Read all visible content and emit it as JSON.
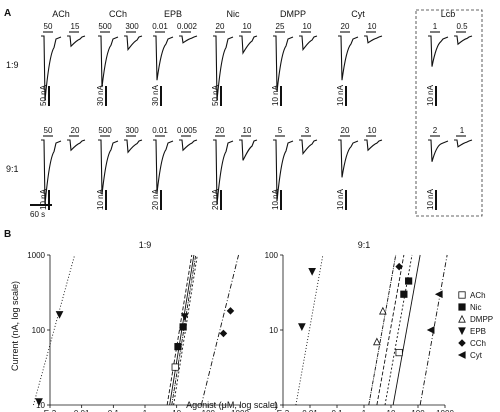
{
  "panelA": {
    "label": "A",
    "drugs": [
      "ACh",
      "CCh",
      "EPB",
      "Nic",
      "DMPP",
      "Cyt",
      "Lcb"
    ],
    "rows": [
      {
        "name": "1:9",
        "scales": [
          "50 nA",
          "30 nA",
          "30 nA",
          "50 nA",
          "10 nA",
          "10 nA",
          "10 nA"
        ],
        "concs": [
          [
            "50",
            "15"
          ],
          [
            "500",
            "300"
          ],
          [
            "0.01",
            "0.002"
          ],
          [
            "20",
            "10"
          ],
          [
            "25",
            "10"
          ],
          [
            "20",
            "10"
          ],
          [
            "1",
            "0.5"
          ]
        ],
        "depth": [
          0.95,
          0.75,
          0.65,
          0.95,
          0.82,
          0.65,
          0.45
        ],
        "depth2": [
          0.15,
          0.2,
          0.1,
          0.25,
          0.2,
          0.1,
          0.12
        ]
      },
      {
        "name": "9:1",
        "scales": [
          "10 nA",
          "10 nA",
          "20 nA",
          "20 nA",
          "10 nA",
          "10 nA",
          "10 nA"
        ],
        "concs": [
          [
            "50",
            "20"
          ],
          [
            "500",
            "300"
          ],
          [
            "0.01",
            "0.005"
          ],
          [
            "20",
            "10"
          ],
          [
            "5",
            "3"
          ],
          [
            "20",
            "10"
          ],
          [
            "2",
            "1"
          ]
        ],
        "depth": [
          0.95,
          0.8,
          0.78,
          0.95,
          0.9,
          0.55,
          0.32
        ],
        "depth2": [
          0.15,
          0.18,
          0.15,
          0.3,
          0.2,
          0.15,
          0.1
        ]
      }
    ],
    "time_scale": "60 s"
  },
  "panelB": {
    "label": "B",
    "legend": [
      {
        "name": "ACh",
        "marker": "square"
      },
      {
        "name": "Nic",
        "marker": "filled-square"
      },
      {
        "name": "DMPP",
        "marker": "open-triangle"
      },
      {
        "name": "EPB",
        "marker": "down-triangle"
      },
      {
        "name": "CCh",
        "marker": "diamond"
      },
      {
        "name": "Cyt",
        "marker": "left-triangle"
      }
    ],
    "xlabel": "Agonist (μM, log scale)",
    "ylabel": "Current (nA, log scale)",
    "x_ticks": [
      "E-3",
      "0.01",
      "0.1",
      "1",
      "10",
      "100",
      "1000"
    ],
    "plots": [
      {
        "title": "1:9",
        "y_ticks": [
          "10",
          "100",
          "1000"
        ],
        "ylim": [
          10,
          1000
        ],
        "points": [
          {
            "series": "EPB",
            "x": 0.00045,
            "y": 11,
            "marker": "down-triangle"
          },
          {
            "series": "EPB",
            "x": 0.002,
            "y": 160,
            "marker": "down-triangle"
          },
          {
            "series": "ACh",
            "x": 9,
            "y": 32,
            "marker": "square"
          },
          {
            "series": "Nic",
            "x": 11,
            "y": 60,
            "marker": "filled-square"
          },
          {
            "series": "Nic",
            "x": 16,
            "y": 110,
            "marker": "filled-square"
          },
          {
            "series": "EPB",
            "x": 18,
            "y": 150,
            "marker": "down-triangle"
          },
          {
            "series": "CCh",
            "x": 300,
            "y": 90,
            "marker": "diamond"
          },
          {
            "series": "CCh",
            "x": 500,
            "y": 180,
            "marker": "diamond"
          }
        ],
        "fits": [
          {
            "x": [
              0.0003,
              0.006
            ],
            "y": [
              10,
              1000
            ],
            "dash": "1,2"
          },
          {
            "x": [
              5,
              30
            ],
            "y": [
              10,
              1000
            ],
            "dash": "4,2"
          },
          {
            "x": [
              6,
              35
            ],
            "y": [
              10,
              1000
            ],
            "dash": ""
          },
          {
            "x": [
              7,
              40
            ],
            "y": [
              10,
              1000
            ],
            "dash": "4,1,1,1"
          },
          {
            "x": [
              8,
              45
            ],
            "y": [
              10,
              1000
            ],
            "dash": "2,2"
          },
          {
            "x": [
              60,
              900
            ],
            "y": [
              10,
              1000
            ],
            "dash": "5,2,1,2"
          }
        ]
      },
      {
        "title": "9:1",
        "y_ticks": [
          "1",
          "10",
          "100"
        ],
        "ylim": [
          1,
          100
        ],
        "points": [
          {
            "series": "EPB",
            "x": 0.005,
            "y": 11,
            "marker": "down-triangle"
          },
          {
            "series": "EPB",
            "x": 0.012,
            "y": 60,
            "marker": "down-triangle"
          },
          {
            "series": "DMPP",
            "x": 3,
            "y": 7,
            "marker": "open-triangle"
          },
          {
            "series": "DMPP",
            "x": 5,
            "y": 18,
            "marker": "open-triangle"
          },
          {
            "series": "ACh",
            "x": 20,
            "y": 5,
            "marker": "square"
          },
          {
            "series": "Nic",
            "x": 30,
            "y": 30,
            "marker": "filled-square"
          },
          {
            "series": "CCh",
            "x": 20,
            "y": 70,
            "marker": "diamond"
          },
          {
            "series": "Nic",
            "x": 45,
            "y": 45,
            "marker": "filled-square"
          },
          {
            "series": "Cyt",
            "x": 300,
            "y": 10,
            "marker": "left-triangle"
          },
          {
            "series": "Cyt",
            "x": 600,
            "y": 30,
            "marker": "left-triangle"
          }
        ],
        "fits": [
          {
            "x": [
              0.003,
              0.03
            ],
            "y": [
              1,
              100
            ],
            "dash": "1,2"
          },
          {
            "x": [
              1.5,
              15
            ],
            "y": [
              1,
              100
            ],
            "dash": "4,1,1,1"
          },
          {
            "x": [
              3,
              30
            ],
            "y": [
              1,
              100
            ],
            "dash": "4,2"
          },
          {
            "x": [
              6,
              60
            ],
            "y": [
              1,
              100
            ],
            "dash": "2,2"
          },
          {
            "x": [
              12,
              120
            ],
            "y": [
              1,
              100
            ],
            "dash": ""
          },
          {
            "x": [
              120,
              1200
            ],
            "y": [
              1,
              100
            ],
            "dash": "5,2,1,2"
          }
        ]
      }
    ]
  }
}
